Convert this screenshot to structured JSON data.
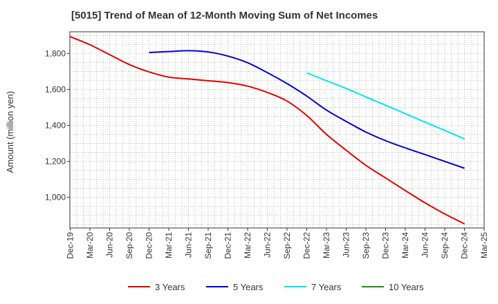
{
  "chart_data": {
    "type": "line",
    "title": "[5015]  Trend of Mean of 12-Month Moving Sum of Net Incomes",
    "ylabel": "Amount (million yen)",
    "xlabel": "",
    "ylim": [
      830,
      1920
    ],
    "yticks": [
      1000,
      1200,
      1400,
      1600,
      1800
    ],
    "ytick_labels": [
      "1,000",
      "1,200",
      "1,400",
      "1,600",
      "1,800"
    ],
    "grid": true,
    "legend_position": "bottom",
    "x_ticks": [
      "Dec-19",
      "Mar-20",
      "Jun-20",
      "Sep-20",
      "Dec-20",
      "Mar-21",
      "Jun-21",
      "Sep-21",
      "Dec-21",
      "Mar-22",
      "Jun-22",
      "Sep-22",
      "Dec-22",
      "Mar-23",
      "Jun-23",
      "Sep-23",
      "Dec-23",
      "Mar-24",
      "Jun-24",
      "Sep-24",
      "Dec-24",
      "Mar-25"
    ],
    "series": [
      {
        "name": "3 Years",
        "color": "#e00000",
        "x": [
          "Dec-19",
          "Mar-20",
          "Jun-20",
          "Sep-20",
          "Dec-20",
          "Mar-21",
          "Jun-21",
          "Sep-21",
          "Dec-21",
          "Mar-22",
          "Jun-22",
          "Sep-22",
          "Dec-22",
          "Mar-23",
          "Jun-23",
          "Sep-23",
          "Dec-23",
          "Mar-24",
          "Jun-24",
          "Sep-24",
          "Dec-24"
        ],
        "values": [
          1893,
          1848,
          1793,
          1738,
          1697,
          1668,
          1658,
          1648,
          1638,
          1618,
          1583,
          1535,
          1455,
          1350,
          1262,
          1178,
          1108,
          1038,
          970,
          908,
          853
        ]
      },
      {
        "name": "5 Years",
        "color": "#0000cc",
        "x": [
          "Dec-20",
          "Mar-21",
          "Jun-21",
          "Sep-21",
          "Dec-21",
          "Mar-22",
          "Jun-22",
          "Sep-22",
          "Dec-22",
          "Mar-23",
          "Jun-23",
          "Sep-23",
          "Dec-23",
          "Mar-24",
          "Jun-24",
          "Sep-24",
          "Dec-24"
        ],
        "values": [
          1805,
          1810,
          1815,
          1808,
          1785,
          1748,
          1693,
          1632,
          1563,
          1485,
          1422,
          1363,
          1315,
          1275,
          1238,
          1200,
          1162
        ]
      },
      {
        "name": "7 Years",
        "color": "#00e5ee",
        "x": [
          "Dec-22",
          "Mar-23",
          "Jun-23",
          "Sep-23",
          "Dec-23",
          "Mar-24",
          "Jun-24",
          "Sep-24",
          "Dec-24"
        ],
        "values": [
          1692,
          1648,
          1605,
          1558,
          1512,
          1465,
          1418,
          1372,
          1325
        ]
      },
      {
        "name": "10 Years",
        "color": "#228b22",
        "x": [],
        "values": []
      }
    ]
  }
}
